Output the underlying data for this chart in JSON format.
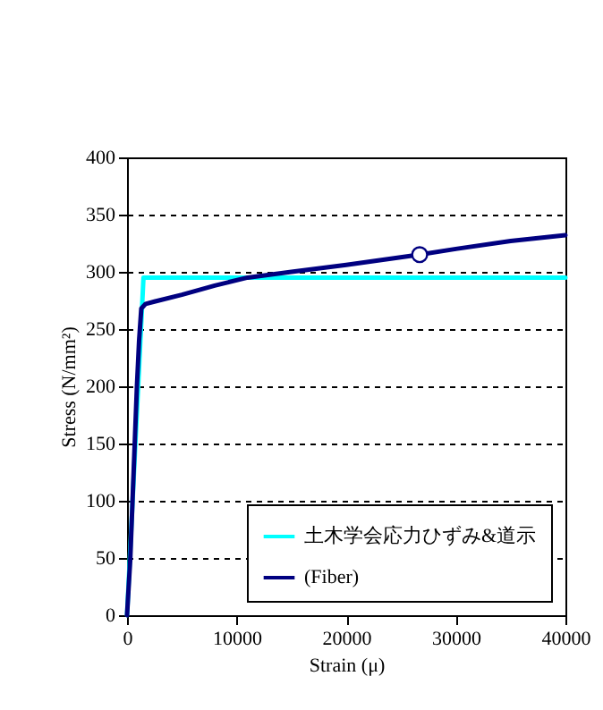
{
  "chart_data": {
    "type": "line",
    "xlabel": "Strain (μ)",
    "ylabel": "Stress (N/mm²)",
    "xlim": [
      0,
      40000
    ],
    "xticks": [
      0,
      10000,
      20000,
      30000,
      40000
    ],
    "ylim": [
      0,
      400
    ],
    "yticks": [
      0,
      50,
      100,
      150,
      200,
      250,
      300,
      350,
      400
    ],
    "grid": "y",
    "legend": "bottom right",
    "line_style": "solid",
    "series": [
      {
        "name": "土木学会応力ひずみ&道示",
        "color": "#00ffff",
        "x": [
          0,
          1500,
          40000
        ],
        "values": [
          0,
          295,
          295
        ]
      },
      {
        "name": "(Fiber)",
        "color": "#000080",
        "x": [
          0,
          300,
          500,
          700,
          900,
          1100,
          1300,
          1700,
          2500,
          5000,
          8000,
          11000,
          15000,
          20000,
          26700,
          30000,
          35000,
          40000
        ],
        "values": [
          0,
          50,
          100,
          150,
          200,
          240,
          268,
          272,
          274,
          280,
          288,
          295,
          300,
          306,
          315,
          320,
          327,
          332
        ]
      },
      {
        "type": "scatter",
        "marker": "circle",
        "color": "#000080",
        "x": [
          26700
        ],
        "values": [
          315
        ]
      }
    ]
  }
}
